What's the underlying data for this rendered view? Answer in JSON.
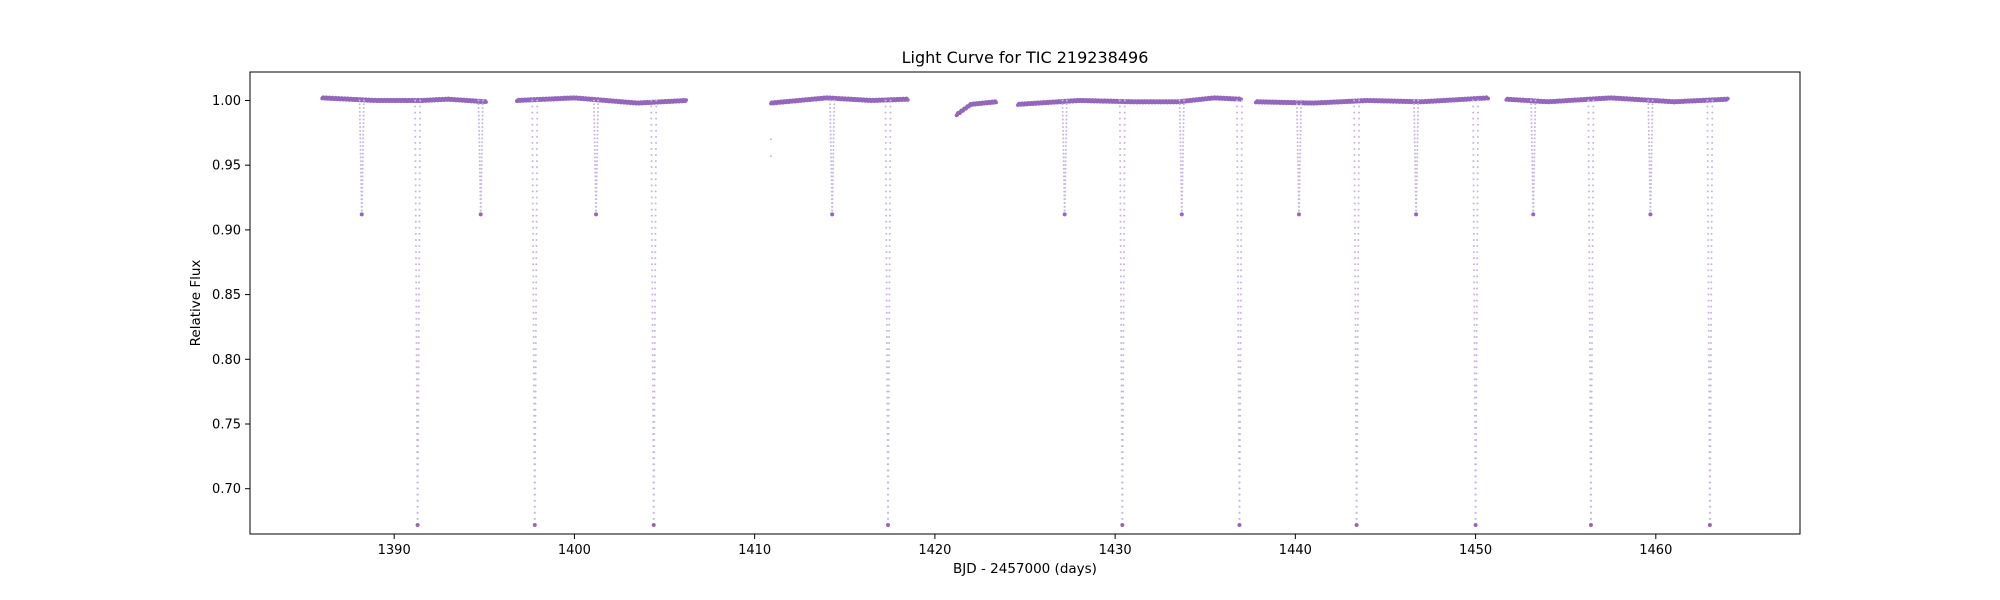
{
  "chart_data": {
    "type": "scatter",
    "title": "Light Curve for TIC 219238496",
    "xlabel": "BJD - 2457000 (days)",
    "ylabel": "Relative Flux",
    "xlim": [
      1382,
      1468
    ],
    "ylim": [
      0.665,
      1.022
    ],
    "x_ticks": [
      1390,
      1400,
      1410,
      1420,
      1430,
      1440,
      1450,
      1460
    ],
    "x_tick_labels": [
      "1390",
      "1400",
      "1410",
      "1420",
      "1430",
      "1440",
      "1450",
      "1460"
    ],
    "y_ticks": [
      0.7,
      0.75,
      0.8,
      0.85,
      0.9,
      0.95,
      1.0
    ],
    "y_tick_labels": [
      "0.70",
      "0.75",
      "0.80",
      "0.85",
      "0.90",
      "0.95",
      "1.00"
    ],
    "grid": false,
    "colors": {
      "points": "#9467bd",
      "in_transit_points": "#c8b4ea"
    },
    "segments": [
      {
        "x_start": 1386.0,
        "x_end": 1395.1,
        "flux": [
          [
            1386.0,
            1.002
          ],
          [
            1389.0,
            1.0
          ],
          [
            1391.5,
            1.0
          ],
          [
            1393.0,
            1.001
          ],
          [
            1395.1,
            0.999
          ]
        ]
      },
      {
        "x_start": 1396.8,
        "x_end": 1406.2,
        "flux": [
          [
            1396.8,
            1.0
          ],
          [
            1400.0,
            1.002
          ],
          [
            1403.5,
            0.998
          ],
          [
            1406.2,
            1.0
          ]
        ]
      },
      {
        "x_start": 1410.9,
        "x_end": 1418.5,
        "flux": [
          [
            1410.9,
            0.998
          ],
          [
            1414.0,
            1.002
          ],
          [
            1416.5,
            1.0
          ],
          [
            1418.5,
            1.001
          ]
        ]
      },
      {
        "x_start": 1421.2,
        "x_end": 1423.4,
        "flux": [
          [
            1421.2,
            0.989
          ],
          [
            1422.0,
            0.997
          ],
          [
            1423.4,
            0.999
          ]
        ]
      },
      {
        "x_start": 1424.6,
        "x_end": 1437.0,
        "flux": [
          [
            1424.6,
            0.997
          ],
          [
            1428.0,
            1.0
          ],
          [
            1431.0,
            0.999
          ],
          [
            1433.5,
            0.999
          ],
          [
            1435.5,
            1.002
          ],
          [
            1437.0,
            1.001
          ]
        ]
      },
      {
        "x_start": 1437.8,
        "x_end": 1450.7,
        "flux": [
          [
            1437.8,
            0.999
          ],
          [
            1441.0,
            0.998
          ],
          [
            1444.0,
            1.0
          ],
          [
            1447.0,
            0.999
          ],
          [
            1450.7,
            1.002
          ]
        ]
      },
      {
        "x_start": 1451.7,
        "x_end": 1464.0,
        "flux": [
          [
            1451.7,
            1.001
          ],
          [
            1454.0,
            0.999
          ],
          [
            1457.5,
            1.002
          ],
          [
            1461.0,
            0.999
          ],
          [
            1464.0,
            1.001
          ]
        ]
      }
    ],
    "secondary_eclipses": {
      "depth_flux": 0.912,
      "times": [
        1388.2,
        1394.8,
        1401.2,
        1414.3,
        1427.2,
        1433.7,
        1440.2,
        1446.7,
        1453.2,
        1459.7
      ]
    },
    "primary_eclipses": {
      "depth_flux": 0.672,
      "times": [
        1391.3,
        1397.8,
        1404.4,
        1417.4,
        1430.4,
        1436.9,
        1443.4,
        1450.0,
        1456.4,
        1463.0
      ]
    },
    "extra_points": [
      [
        1410.9,
        0.957
      ],
      [
        1410.9,
        0.97
      ]
    ]
  }
}
